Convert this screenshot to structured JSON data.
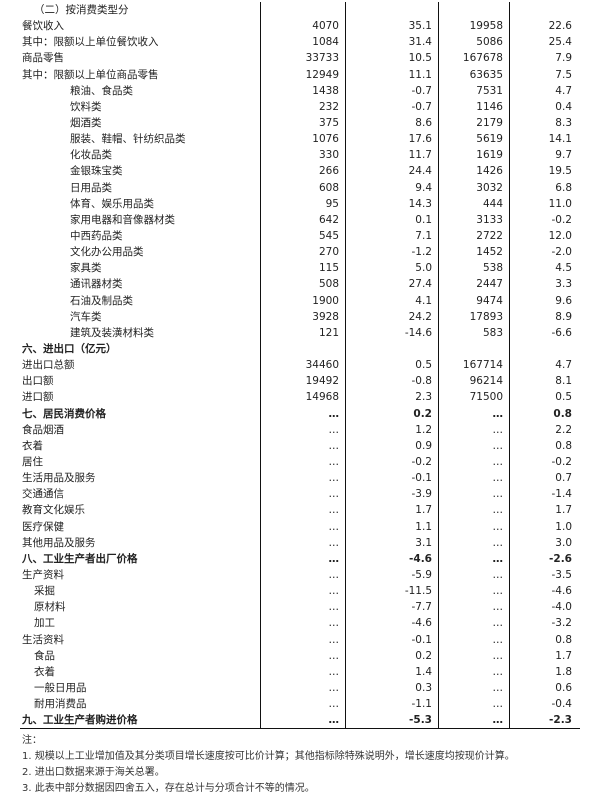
{
  "rows": [
    {
      "label": "（二）按消费类型分",
      "indent": 1,
      "bold": false,
      "v": [
        "",
        "",
        "",
        ""
      ]
    },
    {
      "label": "餐饮收入",
      "indent": 0,
      "bold": false,
      "v": [
        "4070",
        "35.1",
        "19958",
        "22.6"
      ]
    },
    {
      "label": "其中：限额以上单位餐饮收入",
      "indent": 0,
      "bold": false,
      "v": [
        "1084",
        "31.4",
        "5086",
        "25.4"
      ]
    },
    {
      "label": "商品零售",
      "indent": 0,
      "bold": false,
      "v": [
        "33733",
        "10.5",
        "167678",
        "7.9"
      ]
    },
    {
      "label": "其中：限额以上单位商品零售",
      "indent": 0,
      "bold": false,
      "v": [
        "12949",
        "11.1",
        "63635",
        "7.5"
      ]
    },
    {
      "label": "粮油、食品类",
      "indent": 2,
      "bold": false,
      "v": [
        "1438",
        "-0.7",
        "7531",
        "4.7"
      ]
    },
    {
      "label": "饮料类",
      "indent": 2,
      "bold": false,
      "v": [
        "232",
        "-0.7",
        "1146",
        "0.4"
      ]
    },
    {
      "label": "烟酒类",
      "indent": 2,
      "bold": false,
      "v": [
        "375",
        "8.6",
        "2179",
        "8.3"
      ]
    },
    {
      "label": "服装、鞋帽、针纺织品类",
      "indent": 2,
      "bold": false,
      "v": [
        "1076",
        "17.6",
        "5619",
        "14.1"
      ]
    },
    {
      "label": "化妆品类",
      "indent": 2,
      "bold": false,
      "v": [
        "330",
        "11.7",
        "1619",
        "9.7"
      ]
    },
    {
      "label": "金银珠宝类",
      "indent": 2,
      "bold": false,
      "v": [
        "266",
        "24.4",
        "1426",
        "19.5"
      ]
    },
    {
      "label": "日用品类",
      "indent": 2,
      "bold": false,
      "v": [
        "608",
        "9.4",
        "3032",
        "6.8"
      ]
    },
    {
      "label": "体育、娱乐用品类",
      "indent": 2,
      "bold": false,
      "v": [
        "95",
        "14.3",
        "444",
        "11.0"
      ]
    },
    {
      "label": "家用电器和音像器材类",
      "indent": 2,
      "bold": false,
      "v": [
        "642",
        "0.1",
        "3133",
        "-0.2"
      ]
    },
    {
      "label": "中西药品类",
      "indent": 2,
      "bold": false,
      "v": [
        "545",
        "7.1",
        "2722",
        "12.0"
      ]
    },
    {
      "label": "文化办公用品类",
      "indent": 2,
      "bold": false,
      "v": [
        "270",
        "-1.2",
        "1452",
        "-2.0"
      ]
    },
    {
      "label": "家具类",
      "indent": 2,
      "bold": false,
      "v": [
        "115",
        "5.0",
        "538",
        "4.5"
      ]
    },
    {
      "label": "通讯器材类",
      "indent": 2,
      "bold": false,
      "v": [
        "508",
        "27.4",
        "2447",
        "3.3"
      ]
    },
    {
      "label": "石油及制品类",
      "indent": 2,
      "bold": false,
      "v": [
        "1900",
        "4.1",
        "9474",
        "9.6"
      ]
    },
    {
      "label": "汽车类",
      "indent": 2,
      "bold": false,
      "v": [
        "3928",
        "24.2",
        "17893",
        "8.9"
      ]
    },
    {
      "label": "建筑及装潢材料类",
      "indent": 2,
      "bold": false,
      "v": [
        "121",
        "-14.6",
        "583",
        "-6.6"
      ]
    },
    {
      "label": "六、进出口（亿元）",
      "indent": 0,
      "bold": true,
      "v": [
        "",
        "",
        "",
        ""
      ]
    },
    {
      "label": "进出口总额",
      "indent": 0,
      "bold": false,
      "v": [
        "34460",
        "0.5",
        "167714",
        "4.7"
      ]
    },
    {
      "label": "出口额",
      "indent": 0,
      "bold": false,
      "v": [
        "19492",
        "-0.8",
        "96214",
        "8.1"
      ]
    },
    {
      "label": "进口额",
      "indent": 0,
      "bold": false,
      "v": [
        "14968",
        "2.3",
        "71500",
        "0.5"
      ]
    },
    {
      "label": "七、居民消费价格",
      "indent": 0,
      "bold": true,
      "v": [
        "…",
        "0.2",
        "…",
        "0.8"
      ]
    },
    {
      "label": "食品烟酒",
      "indent": 0,
      "bold": false,
      "v": [
        "…",
        "1.2",
        "…",
        "2.2"
      ]
    },
    {
      "label": "衣着",
      "indent": 0,
      "bold": false,
      "v": [
        "…",
        "0.9",
        "…",
        "0.8"
      ]
    },
    {
      "label": "居住",
      "indent": 0,
      "bold": false,
      "v": [
        "…",
        "-0.2",
        "…",
        "-0.2"
      ]
    },
    {
      "label": "生活用品及服务",
      "indent": 0,
      "bold": false,
      "v": [
        "…",
        "-0.1",
        "…",
        "0.7"
      ]
    },
    {
      "label": "交通通信",
      "indent": 0,
      "bold": false,
      "v": [
        "…",
        "-3.9",
        "…",
        "-1.4"
      ]
    },
    {
      "label": "教育文化娱乐",
      "indent": 0,
      "bold": false,
      "v": [
        "…",
        "1.7",
        "…",
        "1.7"
      ]
    },
    {
      "label": "医疗保健",
      "indent": 0,
      "bold": false,
      "v": [
        "…",
        "1.1",
        "…",
        "1.0"
      ]
    },
    {
      "label": "其他用品及服务",
      "indent": 0,
      "bold": false,
      "v": [
        "…",
        "3.1",
        "…",
        "3.0"
      ]
    },
    {
      "label": "八、工业生产者出厂价格",
      "indent": 0,
      "bold": true,
      "v": [
        "…",
        "-4.6",
        "…",
        "-2.6"
      ]
    },
    {
      "label": "生产资料",
      "indent": 0,
      "bold": false,
      "v": [
        "…",
        "-5.9",
        "…",
        "-3.5"
      ]
    },
    {
      "label": "采掘",
      "indent": 1,
      "bold": false,
      "v": [
        "…",
        "-11.5",
        "…",
        "-4.6"
      ]
    },
    {
      "label": "原材料",
      "indent": 1,
      "bold": false,
      "v": [
        "…",
        "-7.7",
        "…",
        "-4.0"
      ]
    },
    {
      "label": "加工",
      "indent": 1,
      "bold": false,
      "v": [
        "…",
        "-4.6",
        "…",
        "-3.2"
      ]
    },
    {
      "label": "生活资料",
      "indent": 0,
      "bold": false,
      "v": [
        "…",
        "-0.1",
        "…",
        "0.8"
      ]
    },
    {
      "label": "食品",
      "indent": 1,
      "bold": false,
      "v": [
        "…",
        "0.2",
        "…",
        "1.7"
      ]
    },
    {
      "label": "衣着",
      "indent": 1,
      "bold": false,
      "v": [
        "…",
        "1.4",
        "…",
        "1.8"
      ]
    },
    {
      "label": "一般日用品",
      "indent": 1,
      "bold": false,
      "v": [
        "…",
        "0.3",
        "…",
        "0.6"
      ]
    },
    {
      "label": "耐用消费品",
      "indent": 1,
      "bold": false,
      "v": [
        "…",
        "-1.1",
        "…",
        "-0.4"
      ]
    },
    {
      "label": "九、工业生产者购进价格",
      "indent": 0,
      "bold": true,
      "v": [
        "…",
        "-5.3",
        "…",
        "-2.3"
      ]
    }
  ],
  "notes": {
    "title": "注：",
    "items": [
      "1. 规模以上工业增加值及其分类项目增长速度按可比价计算；其他指标除特殊说明外，增长速度均按现价计算。",
      "2. 进出口数据来源于海关总署。",
      "3. 此表中部分数据因四舍五入，存在总计与分项合计不等的情况。"
    ]
  }
}
